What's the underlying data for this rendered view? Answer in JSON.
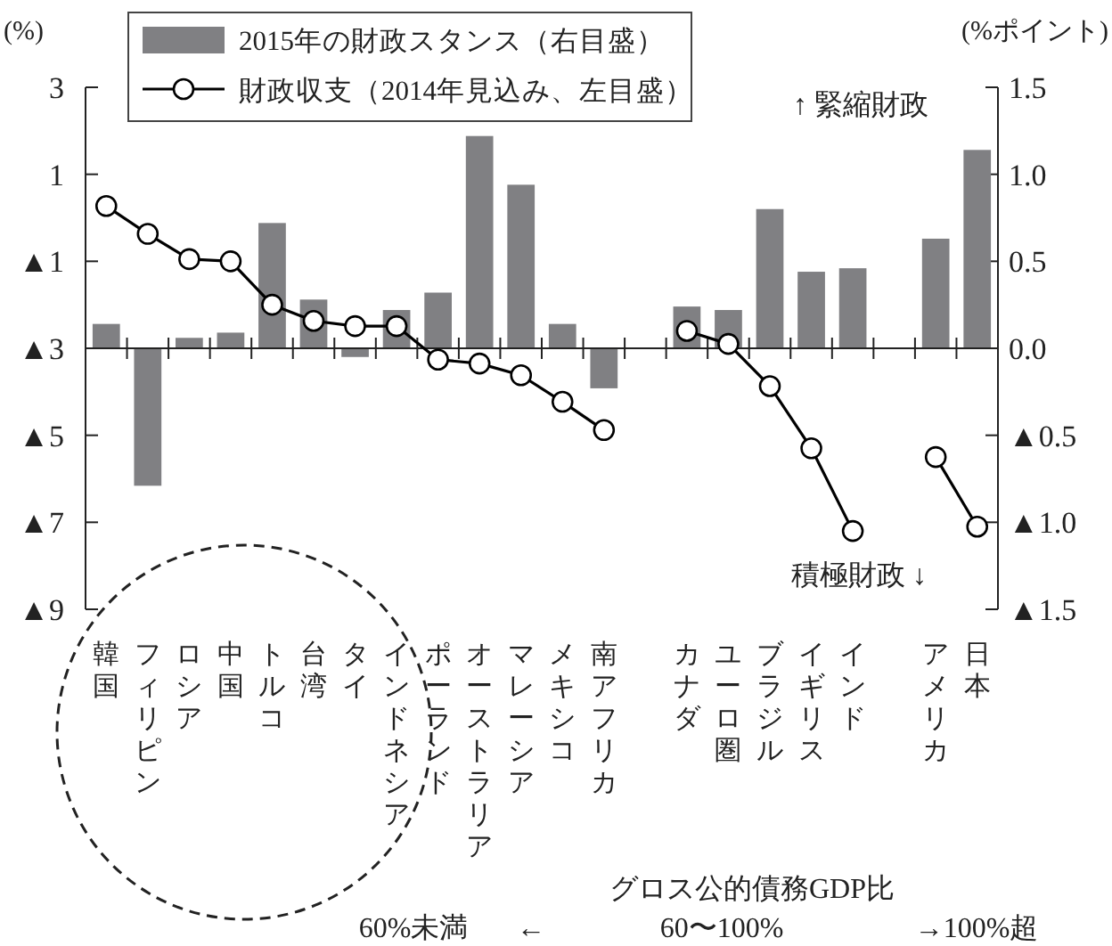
{
  "chart_data": {
    "type": "bar",
    "categories": [
      "韓国",
      "フィリピン",
      "ロシア",
      "中国",
      "トルコ",
      "台湾",
      "タイ",
      "インドネシア",
      "ポーランド",
      "オーストラリア",
      "マレーシア",
      "メキシコ",
      "南アフリカ",
      null,
      "カナダ",
      "ユーロ圏",
      "ブラジル",
      "イギリス",
      "インド",
      null,
      "アメリカ",
      "日本"
    ],
    "series": [
      {
        "name": "2015年の財政スタンス（右目盛）",
        "type": "bar",
        "axis": "y2",
        "color": "#808083",
        "values": [
          0.14,
          -0.79,
          0.06,
          0.09,
          0.72,
          0.28,
          -0.05,
          0.22,
          0.32,
          1.22,
          0.94,
          0.14,
          -0.23,
          null,
          0.24,
          0.22,
          0.8,
          0.44,
          0.46,
          null,
          0.63,
          1.14
        ]
      },
      {
        "name": "財政収支（2014年見込み、左目盛）",
        "type": "line",
        "color": "#000000",
        "values": [
          0.27,
          -0.37,
          -0.95,
          -1.0,
          -2.0,
          -2.37,
          -2.49,
          -2.49,
          -3.26,
          -3.35,
          -3.62,
          -4.23,
          -4.88,
          null,
          -2.6,
          -2.9,
          -3.87,
          -5.3,
          -7.2,
          null,
          -5.5,
          -7.1
        ]
      }
    ],
    "ylabel": "(%)",
    "y2label": "(%ポイント)",
    "ylim": [
      -9,
      3
    ],
    "yticks": [
      3,
      1,
      {
        "value": -1,
        "label": "▲1"
      },
      {
        "value": -3,
        "label": "▲3"
      },
      {
        "value": -5,
        "label": "▲5"
      },
      {
        "value": -7,
        "label": "▲7"
      },
      {
        "value": -9,
        "label": "▲9"
      }
    ],
    "y2lim": [
      -1.5,
      1.5
    ],
    "y2ticks": [
      1.5,
      {
        "value": 1,
        "label": "1.0"
      },
      0.5,
      {
        "value": 0,
        "label": "0.0"
      },
      {
        "value": -0.5,
        "label": "▲0.5"
      },
      {
        "value": -1,
        "label": "▲1.0"
      },
      {
        "value": -1.5,
        "label": "▲1.5"
      }
    ],
    "legend": "top left",
    "marker": "circle",
    "annotations": [
      "↑ 緊縮財政",
      "積極財政 ↓",
      "グロス公的債務GDP比",
      "60%未満",
      "←",
      "60〜100%",
      "→100%超"
    ]
  }
}
